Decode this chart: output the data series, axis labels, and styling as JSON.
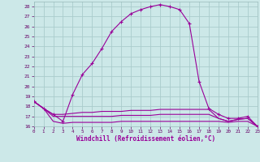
{
  "xlabel": "Windchill (Refroidissement éolien,°C)",
  "bg_color": "#cce8e8",
  "line_color": "#990099",
  "grid_color": "#aacccc",
  "x": [
    0,
    1,
    2,
    3,
    4,
    5,
    6,
    7,
    8,
    9,
    10,
    11,
    12,
    13,
    14,
    15,
    16,
    17,
    18,
    19,
    20,
    21,
    22,
    23
  ],
  "main_y": [
    18.5,
    17.8,
    17.2,
    16.5,
    19.2,
    21.2,
    22.3,
    23.8,
    25.5,
    26.5,
    27.3,
    27.7,
    28.0,
    28.2,
    28.0,
    27.7,
    26.3,
    20.5,
    17.8,
    17.2,
    16.8,
    16.8,
    17.0,
    16.0
  ],
  "line2_y": [
    18.5,
    17.8,
    17.2,
    17.2,
    17.3,
    17.4,
    17.4,
    17.5,
    17.5,
    17.5,
    17.6,
    17.6,
    17.6,
    17.7,
    17.7,
    17.7,
    17.7,
    17.7,
    17.7,
    16.8,
    16.5,
    16.7,
    16.8,
    16.0
  ],
  "line3_y": [
    18.5,
    17.8,
    17.0,
    17.0,
    17.0,
    17.0,
    17.0,
    17.0,
    17.0,
    17.1,
    17.1,
    17.1,
    17.1,
    17.2,
    17.2,
    17.2,
    17.2,
    17.2,
    17.2,
    16.8,
    16.5,
    16.7,
    16.8,
    16.0
  ],
  "line4_y": [
    18.5,
    17.8,
    16.5,
    16.3,
    16.4,
    16.4,
    16.4,
    16.4,
    16.4,
    16.5,
    16.5,
    16.5,
    16.5,
    16.5,
    16.5,
    16.5,
    16.5,
    16.5,
    16.5,
    16.5,
    16.4,
    16.5,
    16.5,
    16.0
  ],
  "xlim": [
    0,
    23
  ],
  "ylim": [
    16,
    28.5
  ],
  "yticks": [
    16,
    17,
    18,
    19,
    20,
    21,
    22,
    23,
    24,
    25,
    26,
    27,
    28
  ],
  "xticks": [
    0,
    1,
    2,
    3,
    4,
    5,
    6,
    7,
    8,
    9,
    10,
    11,
    12,
    13,
    14,
    15,
    16,
    17,
    18,
    19,
    20,
    21,
    22,
    23
  ]
}
